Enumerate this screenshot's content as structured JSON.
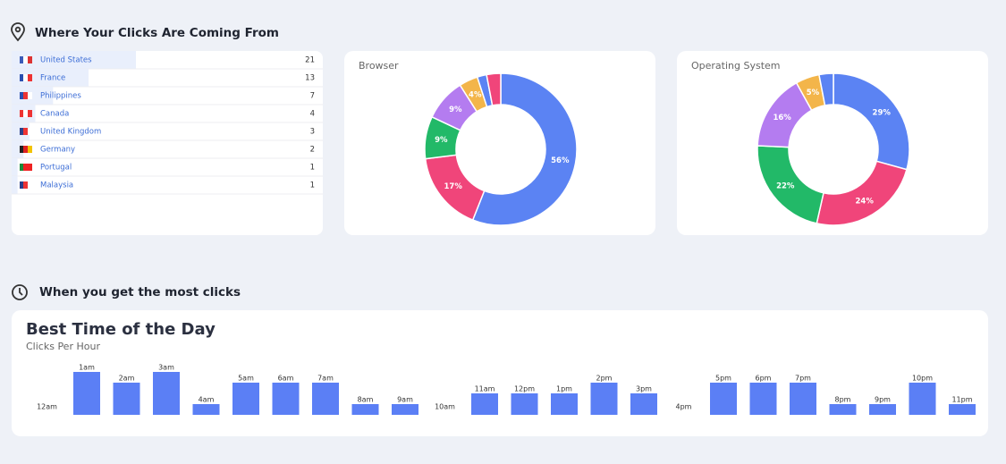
{
  "headings": {
    "clicks_from": "Where Your Clicks Are Coming From",
    "most_clicks": "When you get the most clicks"
  },
  "countries": {
    "rows": [
      {
        "name": "United States",
        "count": 21
      },
      {
        "name": "France",
        "count": 13
      },
      {
        "name": "Philippines",
        "count": 7
      },
      {
        "name": "Canada",
        "count": 4
      },
      {
        "name": "United Kingdom",
        "count": 3
      },
      {
        "name": "Germany",
        "count": 2
      },
      {
        "name": "Portugal",
        "count": 1
      },
      {
        "name": "Malaysia",
        "count": 1
      }
    ]
  },
  "chart_data": [
    {
      "type": "pie",
      "title": "Browser",
      "values": [
        56,
        17,
        9,
        9,
        4,
        2,
        3
      ],
      "value_labels": [
        "56%",
        "17%",
        "9%",
        "9%",
        "4%",
        null,
        null
      ],
      "colors": [
        "#5b83f3",
        "#f0457a",
        "#22b968",
        "#b47cf0",
        "#f3b54a",
        "#5b83f3",
        "#f0457a"
      ]
    },
    {
      "type": "pie",
      "title": "Operating System",
      "values": [
        29,
        24,
        22,
        16,
        5,
        3
      ],
      "value_labels": [
        "29%",
        "24%",
        "22%",
        "16%",
        "5%",
        null
      ],
      "colors": [
        "#5b83f3",
        "#f0457a",
        "#22b968",
        "#b47cf0",
        "#f3b54a",
        "#5b83f3"
      ]
    },
    {
      "type": "bar",
      "title": "Best Time of the Day",
      "subtitle": "Clicks Per Hour",
      "categories": [
        "12am",
        "1am",
        "2am",
        "3am",
        "4am",
        "5am",
        "6am",
        "7am",
        "8am",
        "9am",
        "10am",
        "11am",
        "12pm",
        "1pm",
        "2pm",
        "3pm",
        "4pm",
        "5pm",
        "6pm",
        "7pm",
        "8pm",
        "9pm",
        "10pm",
        "11pm"
      ],
      "values": [
        0,
        4,
        3,
        4,
        1,
        3,
        3,
        3,
        1,
        1,
        0,
        2,
        2,
        2,
        3,
        2,
        0,
        3,
        3,
        3,
        1,
        1,
        3,
        1
      ],
      "ylim": [
        0,
        4
      ],
      "color": "#5b7ff5"
    }
  ]
}
